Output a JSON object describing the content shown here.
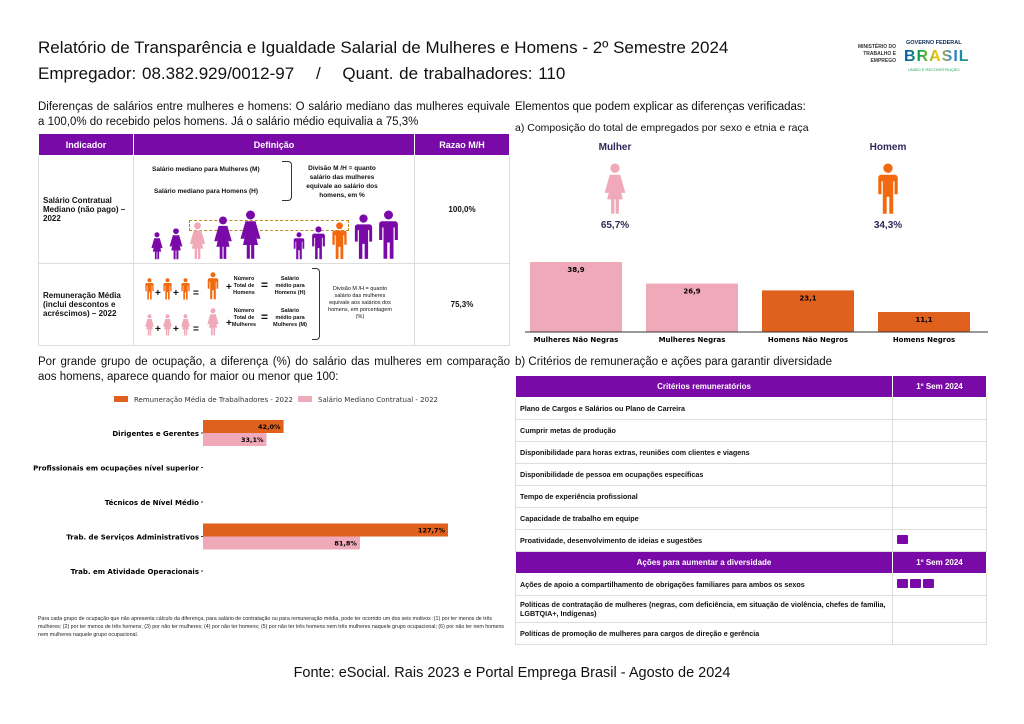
{
  "header": {
    "title": "Relatório de Transparência e Igualdade Salarial de Mulheres e Homens - 2º Semestre 2024",
    "employer": "Empregador: 08.382.929/0012-97",
    "separator": "/",
    "workers": "Quant. de trabalhadores: 110",
    "logo_ministry": "MINISTÉRIO DO TRABALHO E EMPREGO",
    "logo_gov": "GOVERNO FEDERAL",
    "logo_brasil": "BRASIL",
    "logo_slogan": "UNIÃO E RECONSTRUÇÃO"
  },
  "left": {
    "intro": "Diferenças de salários entre mulheres e homens: O salário mediano das mulheres equivale a 100,0% do recebido pelos homens. Já o salário médio equivalia a 75,3%",
    "table": {
      "headers": [
        "Indicador",
        "Definição",
        "Razao M/H"
      ],
      "rows": [
        {
          "indicator": "Salário Contratual Mediano (não pago) – 2022",
          "def_m": "Salário mediano para Mulheres (M)",
          "def_h": "Salário mediano para Homens (H)",
          "def_div": "Divisão M /H = quanto salário das mulheres equivale ao salário dos homens, em %",
          "ratio": "100,0%"
        },
        {
          "indicator": "Remuneração Média (inclui descontos e acréscimos) – 2022",
          "n_h": "Número Total de Homens",
          "s_h": "Salário médio para Homens (H)",
          "n_m": "Número Total de Mulheres",
          "s_m": "Salário médio para Mulheres (M)",
          "def_div": "Divisão M /H = quanto salário das mulheres equivale aos salários dos homens, em porcentagem (%)",
          "ratio": "75,3%"
        }
      ]
    },
    "occupation_intro": "Por grande grupo de ocupação, a diferença (%) do salário das mulheres em comparação aos homens, aparece quando for maior ou menor que 100:",
    "footnote": "Para cada grupo de ocupação que não apresenta cálculo da diferença, para salário de contratação ou para remuneração média, pode ter ocorrido um dos seis motivos :(1) por ter menos de três mulheres; (2) por ter menos de três homens; (3) por não ter mulheres; (4) por não ter homens; (5) por não ter três homens nem três mulheres naquele grupo ocupacional; (6) por não ter nem homens nem mulheres naquele grupo ocupacional."
  },
  "right": {
    "intro": "Elementos que podem explicar as diferenças verificadas:",
    "a_title": "a) Composição do total de empregados por sexo e etnia e raça",
    "mulher": {
      "label": "Mulher",
      "pct": "65,7%"
    },
    "homem": {
      "label": "Homem",
      "pct": "34,3%"
    },
    "b_title": "b) Critérios de remuneração e ações para garantir diversidade",
    "criteria": {
      "header": "Critérios remuneratórios",
      "col": "1º Sem 2024",
      "rows": [
        {
          "label": "Plano de Cargos e Salários ou Plano de Carreira",
          "icons": 0
        },
        {
          "label": "Cumprir metas de produção",
          "icons": 0
        },
        {
          "label": "Disponibilidade para horas extras, reuniões com clientes e viagens",
          "icons": 0
        },
        {
          "label": "Disponibilidade de pessoa em ocupações específicas",
          "icons": 0
        },
        {
          "label": "Tempo de experiência profissional",
          "icons": 0
        },
        {
          "label": "Capacidade de trabalho em equipe",
          "icons": 0
        },
        {
          "label": "Proatividade, desenvolvimento de ideias e sugestões",
          "icons": 1
        }
      ]
    },
    "actions": {
      "header": "Ações para aumentar a diversidade",
      "col": "1º Sem 2024",
      "rows": [
        {
          "label": "Ações de apoio a compartilhamento de obrigações familiares para ambos os sexos",
          "icons": 3
        },
        {
          "label": "Políticas de contratação de mulheres (negras, com deficiência, em situação de violência, chefes de família, LGBTQIA+, Indígenas)",
          "icons": 0
        },
        {
          "label": "Políticas de promoção de mulheres para cargos de direção e gerência",
          "icons": 0
        }
      ]
    }
  },
  "footer": "Fonte: eSocial. Rais 2023 e Portal Emprega Brasil - Agosto de 2024",
  "colors": {
    "purple": "#7a0aa8",
    "orange": "#e0601e",
    "pink": "#f0a9b8"
  },
  "chart_data": [
    {
      "type": "bar",
      "categories": [
        "Mulheres Não Negras",
        "Mulheres Negras",
        "Homens Não Negros",
        "Homens Negros"
      ],
      "values": [
        38.9,
        26.9,
        23.1,
        11.1
      ],
      "labels": [
        "38,9",
        "26,9",
        "23,1",
        "11,1"
      ],
      "colors": [
        "#f0a9b8",
        "#f0a9b8",
        "#e0601e",
        "#e0601e"
      ],
      "grid": false
    },
    {
      "type": "bar",
      "orientation": "horizontal",
      "categories": [
        "Dirigentes e Gerentes",
        "Profissionais em ocupações nível superior",
        "Técnicos de Nível Médio",
        "Trab. de Serviços Administrativos",
        "Trab. em Atividade Operacionais"
      ],
      "series": [
        {
          "name": "Remuneração Média de Trabalhadores - 2022",
          "values": [
            42.0,
            null,
            null,
            127.7,
            null
          ],
          "labels": [
            "42,0%",
            "",
            "",
            "127,7%",
            ""
          ],
          "color": "#e0601e"
        },
        {
          "name": "Salário Mediano Contratual - 2022",
          "values": [
            33.1,
            null,
            null,
            81.8,
            null
          ],
          "labels": [
            "33,1%",
            "",
            "",
            "81,8%",
            ""
          ],
          "color": "#f0a9b8"
        }
      ],
      "legend": "top",
      "grid": false
    }
  ]
}
